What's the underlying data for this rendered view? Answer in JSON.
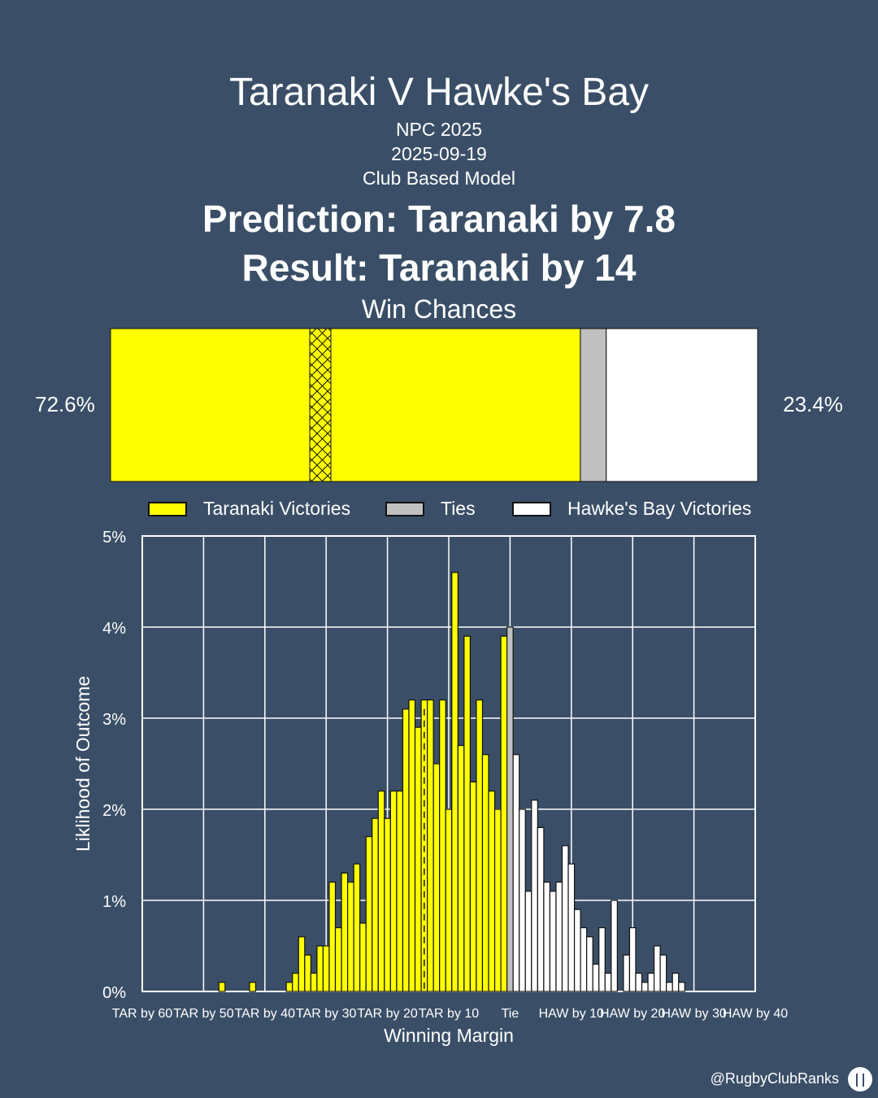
{
  "header": {
    "title": "Taranaki V Hawke's Bay",
    "competition": "NPC 2025",
    "date": "2025-09-19",
    "model": "Club Based Model",
    "prediction": "Prediction: Taranaki by 7.8",
    "result": "Result: Taranaki by 14",
    "win_chances_title": "Win Chances"
  },
  "win_chances": {
    "home_pct_label": "72.6%",
    "away_pct_label": "23.4%",
    "home_share": 0.726,
    "tie_share": 0.04,
    "away_share": 0.234,
    "home_color": "#ffff00",
    "tie_color": "#c0c0c0",
    "away_color": "#ffffff"
  },
  "legend": [
    {
      "label": "Taranaki Victories",
      "color": "#ffff00"
    },
    {
      "label": "Ties",
      "color": "#c0c0c0"
    },
    {
      "label": "Hawke's Bay Victories",
      "color": "#ffffff"
    }
  ],
  "chart_data": {
    "type": "bar",
    "xlabel": "Winning Margin",
    "ylabel": "Liklihood of Outcome",
    "xlim": [
      -60,
      40
    ],
    "ylim": [
      0,
      5
    ],
    "grid": true,
    "x_tick_values": [
      -60,
      -50,
      -40,
      -30,
      -20,
      -10,
      0,
      10,
      20,
      30,
      40
    ],
    "x_tick_labels": [
      "TAR by 60",
      "TAR by 50",
      "TAR by 40",
      "TAR by 30",
      "TAR by 20",
      "TAR by 10",
      "Tie",
      "HAW by 10",
      "HAW by 20",
      "HAW by 30",
      "HAW by 40"
    ],
    "y_tick_values": [
      0,
      1,
      2,
      3,
      4,
      5
    ],
    "y_tick_labels": [
      "0%",
      "1%",
      "2%",
      "3%",
      "4%",
      "5%"
    ],
    "actual_result_margin": -14,
    "series": [
      {
        "name": "Taranaki Victories",
        "color": "#ffff00",
        "x": [
          -47,
          -42,
          -36,
          -35,
          -34,
          -33,
          -32,
          -31,
          -30,
          -29,
          -28,
          -27,
          -26,
          -25,
          -24,
          -23,
          -22,
          -21,
          -20,
          -19,
          -18,
          -17,
          -16,
          -15,
          -14,
          -13,
          -12,
          -11,
          -10,
          -9,
          -8,
          -7,
          -6,
          -5,
          -4,
          -3,
          -2,
          -1
        ],
        "values": [
          0.1,
          0.1,
          0.1,
          0.2,
          0.6,
          0.4,
          0.2,
          0.5,
          0.5,
          1.2,
          0.7,
          1.3,
          1.2,
          1.4,
          0.75,
          1.7,
          1.9,
          2.2,
          1.9,
          2.2,
          2.2,
          3.1,
          3.2,
          2.9,
          3.2,
          3.2,
          2.5,
          3.2,
          2.0,
          4.6,
          2.7,
          3.9,
          2.3,
          3.2,
          2.6,
          2.2,
          2.0,
          3.9
        ]
      },
      {
        "name": "Ties",
        "color": "#c0c0c0",
        "x": [
          0
        ],
        "values": [
          4.0
        ]
      },
      {
        "name": "Hawke's Bay Victories",
        "color": "#ffffff",
        "x": [
          1,
          2,
          3,
          4,
          5,
          6,
          7,
          8,
          9,
          10,
          11,
          12,
          13,
          14,
          15,
          16,
          17,
          18,
          19,
          20,
          21,
          22,
          23,
          24,
          25,
          26,
          27,
          28
        ],
        "values": [
          2.6,
          2.0,
          1.1,
          2.1,
          1.8,
          1.2,
          1.1,
          1.2,
          1.6,
          1.4,
          0.9,
          0.7,
          0.6,
          0.3,
          0.7,
          0.2,
          1.0,
          0.0,
          0.4,
          0.7,
          0.2,
          0.1,
          0.2,
          0.5,
          0.4,
          0.1,
          0.2,
          0.1
        ]
      }
    ]
  },
  "footer": {
    "credit": "@RugbyClubRanks"
  }
}
